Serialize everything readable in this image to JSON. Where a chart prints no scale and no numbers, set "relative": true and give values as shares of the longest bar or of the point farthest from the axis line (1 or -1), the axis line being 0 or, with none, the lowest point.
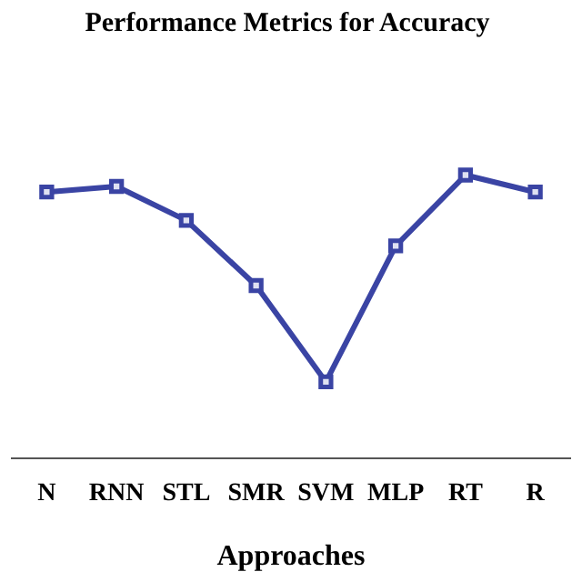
{
  "chart_data": {
    "type": "line",
    "title": "Performance Metrics for Accuracy",
    "xlabel": "Approaches",
    "relative": true,
    "categories": [
      "N",
      "RNN",
      "STL",
      "SMR",
      "SVM",
      "MLP",
      "RT",
      "R"
    ],
    "series": [
      {
        "color": "#3a44a4",
        "values": [
          0.94,
          0.96,
          0.84,
          0.61,
          0.27,
          0.75,
          1,
          0.94
        ]
      }
    ],
    "marker": "square",
    "line_style": "solid",
    "grid": false,
    "legend": false
  }
}
